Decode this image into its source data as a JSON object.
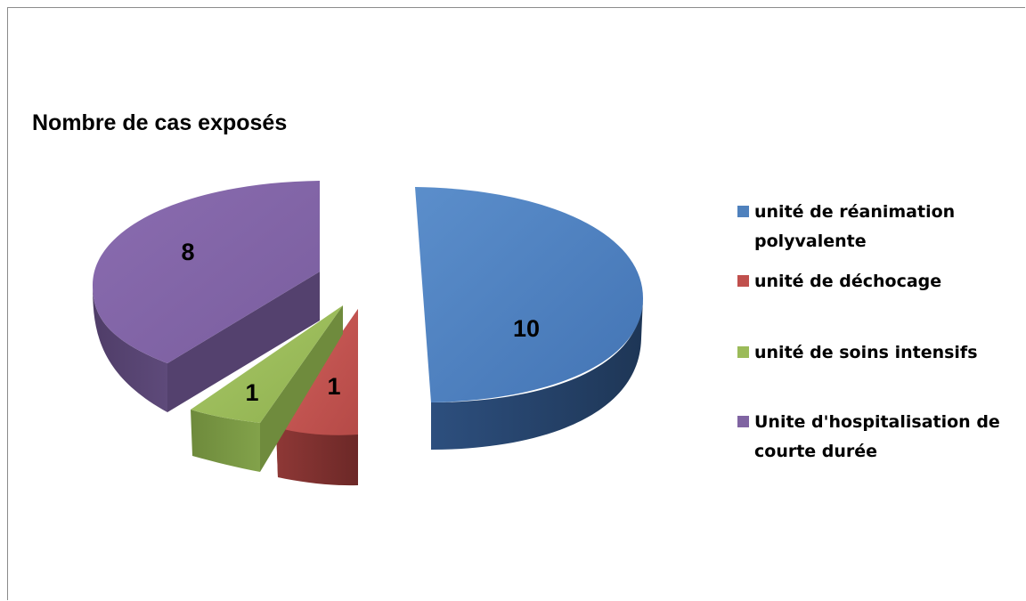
{
  "chart_data": {
    "type": "pie",
    "title": "Nombre de cas exposés",
    "slices": [
      {
        "label": "unité de réanimation polyvalente",
        "value": 10,
        "color": "#4f81bd"
      },
      {
        "label": "unité de déchocage",
        "value": 1,
        "color": "#c0504d"
      },
      {
        "label": "unité de soins intensifs",
        "value": 1,
        "color": "#9bbb59"
      },
      {
        "label": "Unite d'hospitalisation de courte durée",
        "value": 8,
        "color": "#8064a2"
      }
    ],
    "legend_position": "right",
    "three_d": true,
    "exploded": true
  }
}
